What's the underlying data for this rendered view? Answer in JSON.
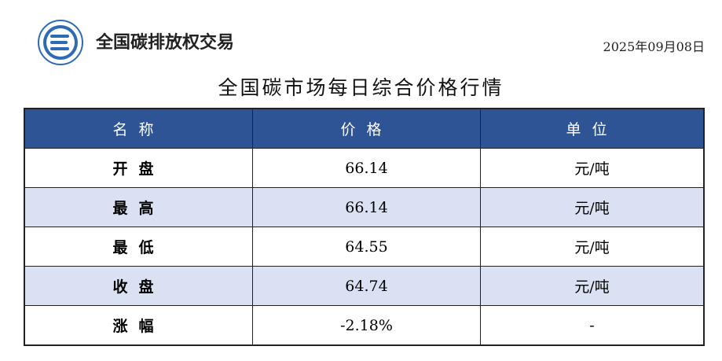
{
  "header": {
    "brand": "全国碳排放权交易",
    "date": "2025年09月08日",
    "title": "全国碳市场每日综合价格行情"
  },
  "colors": {
    "header_bg": "#2F5496",
    "alt_row": "#D9E1F2",
    "logo": "#2E6BB5"
  },
  "table": {
    "columns": [
      "名称",
      "价格",
      "单位"
    ],
    "rows": [
      {
        "name": "开盘",
        "price": "66.14",
        "unit": "元/吨"
      },
      {
        "name": "最高",
        "price": "66.14",
        "unit": "元/吨"
      },
      {
        "name": "最低",
        "price": "64.55",
        "unit": "元/吨"
      },
      {
        "name": "收盘",
        "price": "64.74",
        "unit": "元/吨"
      },
      {
        "name": "涨幅",
        "price": "-2.18%",
        "unit": "-"
      }
    ]
  }
}
